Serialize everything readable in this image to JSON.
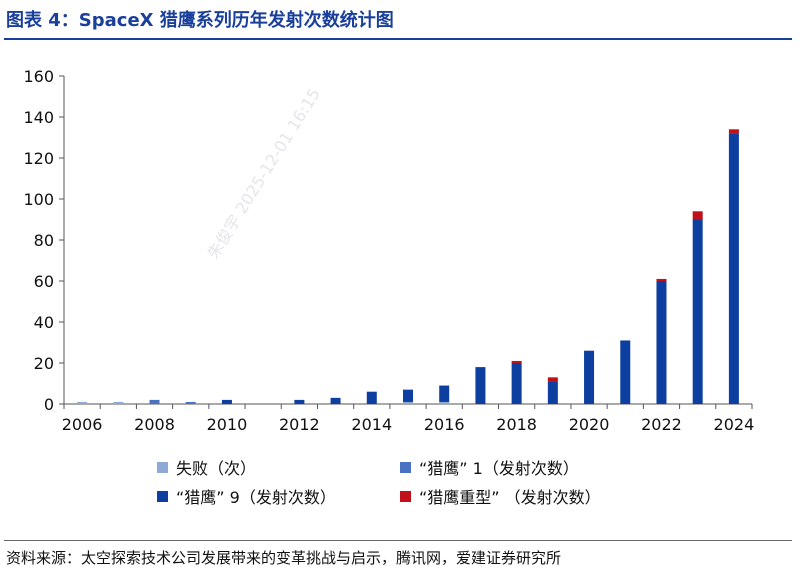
{
  "title": "图表 4：SpaceX 猎鹰系列历年发射次数统计图",
  "source": "资料来源：太空探索技术公司发展带来的变革挑战与启示，腾讯网，爱建证券研究所",
  "watermark": "朱俊宇 2025-12-01 16:15",
  "colors": {
    "failure": "#8fa9d6",
    "falcon1": "#4a72c4",
    "falcon9": "#0d3fa0",
    "heavy": "#c0101a",
    "title": "#1a3f9a"
  },
  "legend": {
    "failure": "失败（次）",
    "falcon1": "“猎鹰” 1（发射次数）",
    "falcon9": "“猎鹰” 9（发射次数）",
    "heavy": "“猎鹰重型” （发射次数）"
  },
  "chart_data": {
    "type": "bar",
    "stacked": true,
    "x": [
      2006,
      2007,
      2008,
      2009,
      2010,
      2011,
      2012,
      2013,
      2014,
      2015,
      2016,
      2017,
      2018,
      2019,
      2020,
      2021,
      2022,
      2023,
      2024
    ],
    "x_tick_labels": [
      "2006",
      "2008",
      "2010",
      "2012",
      "2014",
      "2016",
      "2018",
      "2020",
      "2022",
      "2024"
    ],
    "y_tick_labels": [
      "0",
      "20",
      "40",
      "60",
      "80",
      "100",
      "120",
      "140",
      "160"
    ],
    "ylim": [
      0,
      160
    ],
    "series": [
      {
        "name": "失败（次）",
        "key": "failure",
        "values": [
          1,
          1,
          0,
          0,
          0,
          0,
          0,
          0,
          0,
          1,
          1,
          0,
          0,
          0,
          0,
          0,
          0,
          0,
          0
        ]
      },
      {
        "name": "“猎鹰” 1（发射次数）",
        "key": "falcon1",
        "values": [
          0,
          0,
          2,
          1,
          0,
          0,
          0,
          0,
          0,
          0,
          0,
          0,
          0,
          0,
          0,
          0,
          0,
          0,
          0
        ]
      },
      {
        "name": "“猎鹰” 9（发射次数）",
        "key": "falcon9",
        "values": [
          0,
          0,
          0,
          0,
          2,
          0,
          2,
          3,
          6,
          6,
          8,
          18,
          20,
          11,
          26,
          31,
          60,
          90,
          132
        ]
      },
      {
        "name": "“猎鹰重型” （发射次数）",
        "key": "heavy",
        "values": [
          0,
          0,
          0,
          0,
          0,
          0,
          0,
          0,
          0,
          0,
          0,
          0,
          1,
          2,
          0,
          0,
          1,
          4,
          2
        ]
      }
    ],
    "grid": false,
    "legend_position": "bottom"
  }
}
